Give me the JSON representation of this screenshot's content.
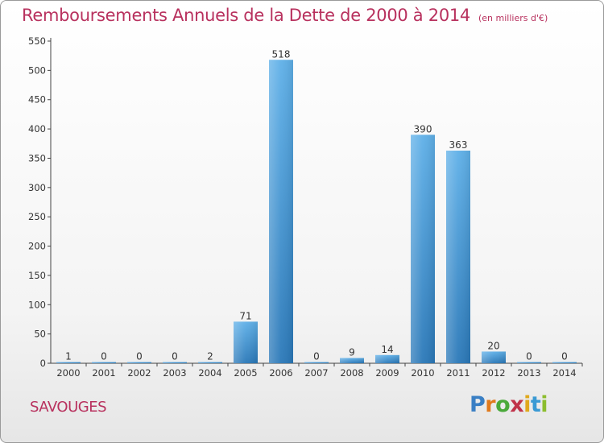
{
  "header": {
    "title": "Remboursements Annuels de la Dette de 2000 à 2014",
    "subtitle": "(en milliers d'€)"
  },
  "footer": {
    "commune": "SAVOUGES",
    "logo_text": "Proxiti",
    "logo_letters": [
      "P",
      "r",
      "o",
      "x",
      "i",
      "t",
      "i"
    ]
  },
  "chart_data": {
    "type": "bar",
    "title": "Remboursements Annuels de la Dette de 2000 à 2014",
    "subtitle": "(en milliers d'€)",
    "xlabel": "",
    "ylabel": "",
    "categories": [
      "2000",
      "2001",
      "2002",
      "2003",
      "2004",
      "2005",
      "2006",
      "2007",
      "2008",
      "2009",
      "2010",
      "2011",
      "2012",
      "2013",
      "2014"
    ],
    "values": [
      1,
      0,
      0,
      0,
      2,
      71,
      518,
      0,
      9,
      14,
      390,
      363,
      20,
      0,
      0
    ],
    "data_labels": [
      "1",
      "0",
      "0",
      "0",
      "2",
      "71",
      "518",
      "0",
      "9",
      "14",
      "390",
      "363",
      "20",
      "0",
      "0"
    ],
    "yticks": [
      0,
      50,
      100,
      150,
      200,
      250,
      300,
      350,
      400,
      450,
      500,
      550
    ],
    "ylim": [
      0,
      550
    ],
    "grid": false,
    "colors": {
      "bar_top": "#5fb0e8",
      "bar_bottom": "#2a78b8",
      "title": "#b8315e"
    }
  }
}
